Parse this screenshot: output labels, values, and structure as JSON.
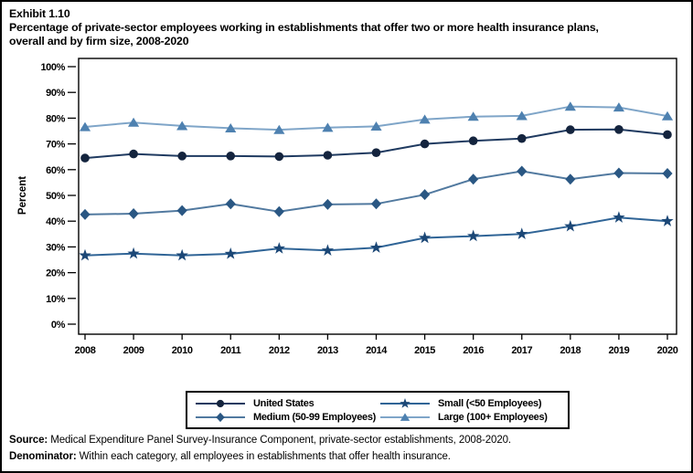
{
  "header": {
    "lines": [
      "Exhibit 1.10",
      "Percentage of private-sector employees working in establishments that offer two or more health insurance plans,",
      "overall and by firm size, 2008-2020"
    ]
  },
  "chart_data": {
    "type": "line",
    "title": "Percentage of private-sector employees working in establishments that offer two or more health insurance plans, overall and by firm size, 2008-2020",
    "xlabel": "",
    "ylabel": "Percent",
    "ylim": [
      0,
      100
    ],
    "ytick_step": 10,
    "ytick_suffix": "%",
    "grid": false,
    "legend_position": "bottom",
    "x": [
      2008,
      2009,
      2010,
      2011,
      2012,
      2013,
      2014,
      2015,
      2016,
      2017,
      2018,
      2019,
      2020
    ],
    "series": [
      {
        "name": "United States",
        "marker": "circle",
        "marker_color": "#14243e",
        "line_color": "#1f3a60",
        "values": [
          64.5,
          66.1,
          65.3,
          65.3,
          65.1,
          65.6,
          66.6,
          70.0,
          71.2,
          72.1,
          75.5,
          75.6,
          73.6
        ]
      },
      {
        "name": "Small (<50 Employees)",
        "marker": "star",
        "marker_color": "#1b4776",
        "line_color": "#2f6496",
        "values": [
          26.7,
          27.4,
          26.7,
          27.3,
          29.4,
          28.6,
          29.7,
          33.5,
          34.2,
          35.0,
          38.0,
          41.4,
          40.0
        ]
      },
      {
        "name": "Medium (50-99 Employees)",
        "marker": "diamond",
        "marker_color": "#2a5783",
        "line_color": "#51799f",
        "values": [
          42.6,
          42.9,
          44.1,
          46.7,
          43.7,
          46.5,
          46.7,
          50.3,
          56.3,
          59.4,
          56.3,
          58.7,
          58.5
        ]
      },
      {
        "name": "Large (100+ Employees)",
        "marker": "triangle",
        "marker_color": "#4e81b0",
        "line_color": "#7fa5c8",
        "values": [
          76.6,
          78.3,
          77.0,
          76.1,
          75.5,
          76.3,
          76.8,
          79.5,
          80.6,
          80.9,
          84.5,
          84.2,
          80.8
        ]
      }
    ]
  },
  "legend": {
    "order": [
      0,
      1,
      2,
      3
    ]
  },
  "footer": {
    "source_label": "Source:",
    "source_text": " Medical Expenditure Panel Survey-Insurance Component, private-sector establishments, 2008-2020.",
    "denominator_label": "Denominator:",
    "denominator_text": " Within each category, all employees in establishments that offer health insurance."
  }
}
